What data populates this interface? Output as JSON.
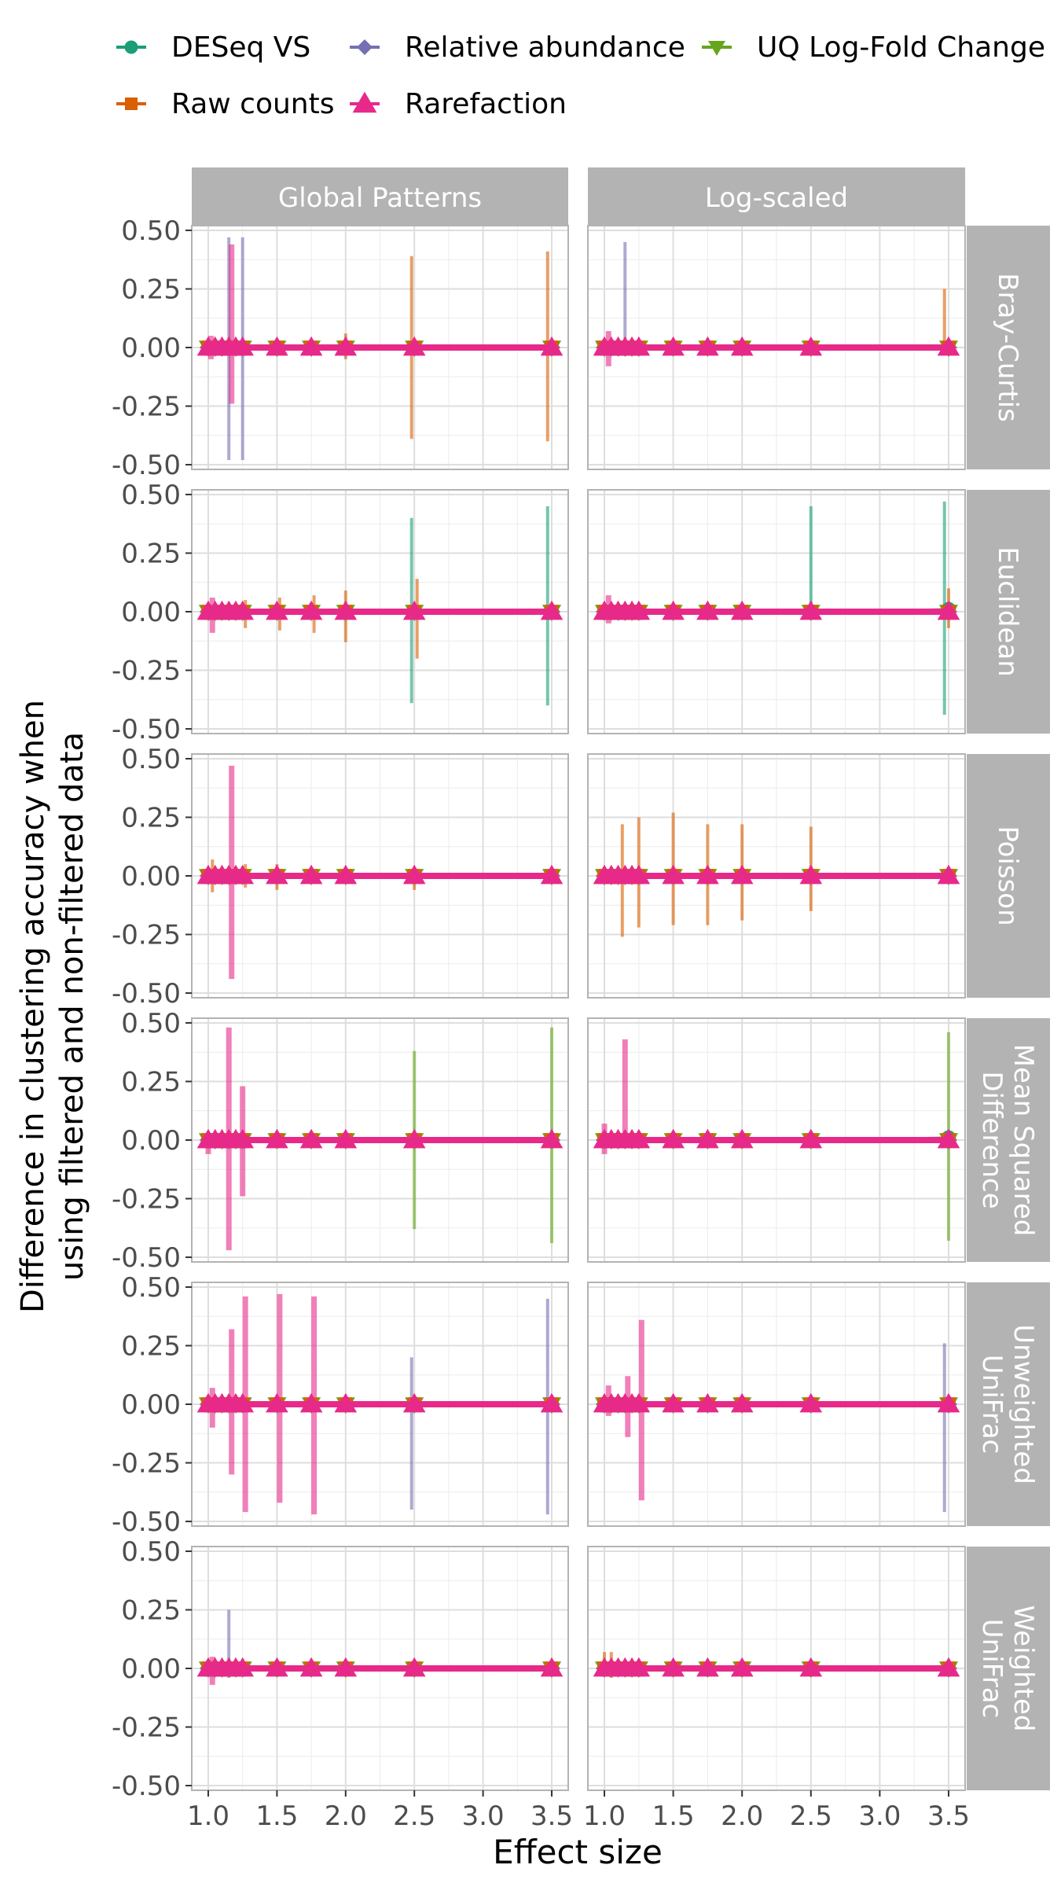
{
  "chart_data": {
    "type": "line",
    "facet": "grid",
    "xlabel": "Effect size",
    "ylabel": [
      "Difference in clustering accuracy when",
      "using filtered and non-filtered data"
    ],
    "x_ticks": [
      "1.0",
      "1.5",
      "2.0",
      "2.5",
      "3.0",
      "3.5"
    ],
    "y_ticks": [
      "0.50",
      "0.25",
      "0.00",
      "-0.25",
      "-0.50"
    ],
    "xlim": [
      0.88,
      3.62
    ],
    "ylim": [
      -0.52,
      0.52
    ],
    "x": [
      1.0,
      1.05,
      1.1,
      1.15,
      1.2,
      1.25,
      1.5,
      1.75,
      2.0,
      2.5,
      3.5
    ],
    "columns": [
      "Global Patterns",
      "Log-scaled"
    ],
    "rows": [
      [
        "Bray-Curtis"
      ],
      [
        "Euclidean"
      ],
      [
        "Poisson"
      ],
      [
        "Mean Squared",
        "Difference"
      ],
      [
        "Unweighted",
        "UniFrac"
      ],
      [
        "Weighted",
        "UniFrac"
      ]
    ],
    "legend": {
      "position": "top",
      "entries": [
        {
          "name": "DESeq VS",
          "color": "#1b9e77",
          "marker": "circle"
        },
        {
          "name": "Relative abundance",
          "color": "#7570b3",
          "marker": "diamond"
        },
        {
          "name": "UQ Log-Fold Change",
          "color": "#66a61e",
          "marker": "triangle-down"
        },
        {
          "name": "Raw counts",
          "color": "#d95f02",
          "marker": "square"
        },
        {
          "name": "Rarefaction",
          "color": "#e7298a",
          "marker": "triangle-up"
        }
      ]
    },
    "series": [
      {
        "name": "DESeq VS",
        "panels": [
          {
            "row": 0,
            "col": 0,
            "points": [
              1.0,
              1.05,
              1.1,
              1.15,
              1.2,
              1.25,
              1.5,
              1.75,
              2.0,
              2.5,
              3.5
            ],
            "values": 0
          },
          {
            "row": 0,
            "col": 1,
            "points": [
              1.0,
              1.05,
              1.1,
              1.15,
              1.2,
              1.25,
              1.5,
              1.75,
              2.0,
              2.5,
              3.5
            ],
            "values": 0
          },
          {
            "row": 1,
            "col": 0,
            "points": [
              1.0,
              1.05,
              1.1,
              1.15,
              1.2,
              1.25,
              1.5,
              1.75,
              2.0,
              2.5,
              3.5
            ],
            "values": 0
          },
          {
            "row": 1,
            "col": 1,
            "points": [
              1.0,
              1.05,
              1.1,
              1.15,
              1.2,
              1.25,
              1.5,
              1.75,
              2.0,
              2.5,
              3.5
            ],
            "values": [
              0,
              0,
              0,
              0,
              0,
              0,
              0,
              0,
              0,
              0,
              0.01
            ]
          },
          {
            "row": 2,
            "col": 0,
            "points": [
              1.0,
              1.05,
              1.1,
              1.15,
              1.2,
              1.25,
              1.5,
              1.75,
              2.0,
              2.5,
              3.5
            ],
            "values": 0
          },
          {
            "row": 2,
            "col": 1,
            "points": [
              1.0,
              1.05,
              1.1,
              1.15,
              1.2,
              1.25,
              1.5,
              1.75,
              2.0,
              2.5,
              3.5
            ],
            "values": 0
          },
          {
            "row": 3,
            "col": 0,
            "points": [
              1.0,
              1.05,
              1.1,
              1.15,
              1.2,
              1.25,
              1.5,
              1.75,
              2.0,
              2.5,
              3.5
            ],
            "values": 0
          },
          {
            "row": 3,
            "col": 1,
            "points": [
              1.0,
              1.05,
              1.1,
              1.15,
              1.2,
              1.25,
              1.5,
              1.75,
              2.0,
              2.5,
              3.5
            ],
            "values": [
              0,
              0,
              0,
              0,
              0,
              0,
              0,
              0,
              0,
              0,
              0.01
            ]
          },
          {
            "row": 4,
            "col": 0,
            "points": [
              1.0,
              1.05,
              1.1,
              1.15,
              1.2,
              1.25,
              1.5,
              1.75,
              2.0,
              2.5,
              3.5
            ],
            "values": 0
          },
          {
            "row": 4,
            "col": 1,
            "points": [
              1.0,
              1.05,
              1.1,
              1.15,
              1.2,
              1.25,
              1.5,
              1.75,
              2.0,
              2.5,
              3.5
            ],
            "values": 0
          },
          {
            "row": 5,
            "col": 0,
            "points": [
              1.0,
              1.05,
              1.1,
              1.15,
              1.2,
              1.25,
              1.5,
              1.75,
              2.0,
              2.5,
              3.5
            ],
            "values": 0
          },
          {
            "row": 5,
            "col": 1,
            "points": [
              1.0,
              1.05,
              1.1,
              1.15,
              1.2,
              1.25,
              1.5,
              1.75,
              2.0,
              2.5,
              3.5
            ],
            "values": 0
          }
        ]
      },
      {
        "name": "Relative abundance",
        "panels": "all",
        "values": 0
      },
      {
        "name": "UQ Log-Fold Change",
        "panels": "all",
        "values": 0
      },
      {
        "name": "Raw counts",
        "panels": "all",
        "values": 0
      },
      {
        "name": "Rarefaction",
        "panels": "all",
        "values": 0
      }
    ],
    "error_bars": [
      {
        "row": 0,
        "col": 0,
        "series": "Relative abundance",
        "x": 1.15,
        "lo": -0.48,
        "hi": 0.47
      },
      {
        "row": 0,
        "col": 0,
        "series": "Relative abundance",
        "x": 1.25,
        "lo": -0.48,
        "hi": 0.47
      },
      {
        "row": 0,
        "col": 0,
        "series": "Rarefaction",
        "x": 1.17,
        "lo": -0.24,
        "hi": 0.44
      },
      {
        "row": 0,
        "col": 0,
        "series": "Rarefaction",
        "x": 1.02,
        "lo": -0.05,
        "hi": 0.05
      },
      {
        "row": 0,
        "col": 0,
        "series": "Raw counts",
        "x": 2.0,
        "lo": -0.05,
        "hi": 0.06
      },
      {
        "row": 0,
        "col": 0,
        "series": "Raw counts",
        "x": 2.48,
        "lo": -0.39,
        "hi": 0.39
      },
      {
        "row": 0,
        "col": 0,
        "series": "Raw counts",
        "x": 3.47,
        "lo": -0.4,
        "hi": 0.41
      },
      {
        "row": 0,
        "col": 1,
        "series": "Relative abundance",
        "x": 1.15,
        "lo": -0.02,
        "hi": 0.45
      },
      {
        "row": 0,
        "col": 1,
        "series": "Rarefaction",
        "x": 1.03,
        "lo": -0.08,
        "hi": 0.07
      },
      {
        "row": 0,
        "col": 1,
        "series": "Raw counts",
        "x": 3.47,
        "lo": -0.03,
        "hi": 0.25
      },
      {
        "row": 1,
        "col": 0,
        "series": "Rarefaction",
        "x": 1.03,
        "lo": -0.09,
        "hi": 0.06
      },
      {
        "row": 1,
        "col": 0,
        "series": "Raw counts",
        "x": 1.27,
        "lo": -0.07,
        "hi": 0.05
      },
      {
        "row": 1,
        "col": 0,
        "series": "Raw counts",
        "x": 1.52,
        "lo": -0.08,
        "hi": 0.06
      },
      {
        "row": 1,
        "col": 0,
        "series": "Raw counts",
        "x": 1.77,
        "lo": -0.09,
        "hi": 0.07
      },
      {
        "row": 1,
        "col": 0,
        "series": "Raw counts",
        "x": 2.0,
        "lo": -0.13,
        "hi": 0.09
      },
      {
        "row": 1,
        "col": 0,
        "series": "DESeq VS",
        "x": 2.48,
        "lo": -0.39,
        "hi": 0.4
      },
      {
        "row": 1,
        "col": 0,
        "series": "Raw counts",
        "x": 2.52,
        "lo": -0.2,
        "hi": 0.14
      },
      {
        "row": 1,
        "col": 0,
        "series": "DESeq VS",
        "x": 3.47,
        "lo": -0.4,
        "hi": 0.45
      },
      {
        "row": 1,
        "col": 1,
        "series": "Rarefaction",
        "x": 1.03,
        "lo": -0.05,
        "hi": 0.07
      },
      {
        "row": 1,
        "col": 1,
        "series": "DESeq VS",
        "x": 2.5,
        "lo": 0.0,
        "hi": 0.45
      },
      {
        "row": 1,
        "col": 1,
        "series": "DESeq VS",
        "x": 3.47,
        "lo": -0.44,
        "hi": 0.47
      },
      {
        "row": 1,
        "col": 1,
        "series": "Raw counts",
        "x": 3.5,
        "lo": -0.07,
        "hi": 0.1
      },
      {
        "row": 2,
        "col": 0,
        "series": "Raw counts",
        "x": 1.03,
        "lo": -0.07,
        "hi": 0.07
      },
      {
        "row": 2,
        "col": 0,
        "series": "Rarefaction",
        "x": 1.17,
        "lo": -0.44,
        "hi": 0.47
      },
      {
        "row": 2,
        "col": 0,
        "series": "Raw counts",
        "x": 1.27,
        "lo": -0.05,
        "hi": 0.05
      },
      {
        "row": 2,
        "col": 0,
        "series": "Raw counts",
        "x": 1.5,
        "lo": -0.06,
        "hi": 0.05
      },
      {
        "row": 2,
        "col": 0,
        "series": "Raw counts",
        "x": 2.5,
        "lo": -0.06,
        "hi": 0.03
      },
      {
        "row": 2,
        "col": 1,
        "series": "Raw counts",
        "x": 1.13,
        "lo": -0.26,
        "hi": 0.22
      },
      {
        "row": 2,
        "col": 1,
        "series": "Raw counts",
        "x": 1.25,
        "lo": -0.22,
        "hi": 0.25
      },
      {
        "row": 2,
        "col": 1,
        "series": "Raw counts",
        "x": 1.5,
        "lo": -0.21,
        "hi": 0.27
      },
      {
        "row": 2,
        "col": 1,
        "series": "Raw counts",
        "x": 1.75,
        "lo": -0.21,
        "hi": 0.22
      },
      {
        "row": 2,
        "col": 1,
        "series": "Raw counts",
        "x": 2.0,
        "lo": -0.19,
        "hi": 0.22
      },
      {
        "row": 2,
        "col": 1,
        "series": "Raw counts",
        "x": 2.5,
        "lo": -0.15,
        "hi": 0.21
      },
      {
        "row": 3,
        "col": 0,
        "series": "Rarefaction",
        "x": 1.0,
        "lo": -0.06,
        "hi": 0.0
      },
      {
        "row": 3,
        "col": 0,
        "series": "Rarefaction",
        "x": 1.15,
        "lo": -0.47,
        "hi": 0.48
      },
      {
        "row": 3,
        "col": 0,
        "series": "Rarefaction",
        "x": 1.25,
        "lo": -0.24,
        "hi": 0.23
      },
      {
        "row": 3,
        "col": 0,
        "series": "UQ Log-Fold Change",
        "x": 2.5,
        "lo": -0.38,
        "hi": 0.38
      },
      {
        "row": 3,
        "col": 0,
        "series": "UQ Log-Fold Change",
        "x": 3.5,
        "lo": -0.44,
        "hi": 0.48
      },
      {
        "row": 3,
        "col": 1,
        "series": "Rarefaction",
        "x": 1.0,
        "lo": -0.06,
        "hi": 0.07
      },
      {
        "row": 3,
        "col": 1,
        "series": "Rarefaction",
        "x": 1.15,
        "lo": -0.03,
        "hi": 0.43
      },
      {
        "row": 3,
        "col": 1,
        "series": "UQ Log-Fold Change",
        "x": 3.5,
        "lo": -0.43,
        "hi": 0.46
      },
      {
        "row": 4,
        "col": 0,
        "series": "Rarefaction",
        "x": 1.03,
        "lo": -0.1,
        "hi": 0.07
      },
      {
        "row": 4,
        "col": 0,
        "series": "Rarefaction",
        "x": 1.17,
        "lo": -0.3,
        "hi": 0.32
      },
      {
        "row": 4,
        "col": 0,
        "series": "Rarefaction",
        "x": 1.27,
        "lo": -0.46,
        "hi": 0.46
      },
      {
        "row": 4,
        "col": 0,
        "series": "Rarefaction",
        "x": 1.52,
        "lo": -0.42,
        "hi": 0.47
      },
      {
        "row": 4,
        "col": 0,
        "series": "Rarefaction",
        "x": 1.77,
        "lo": -0.47,
        "hi": 0.46
      },
      {
        "row": 4,
        "col": 0,
        "series": "Relative abundance",
        "x": 2.48,
        "lo": -0.45,
        "hi": 0.2
      },
      {
        "row": 4,
        "col": 0,
        "series": "Relative abundance",
        "x": 3.47,
        "lo": -0.47,
        "hi": 0.45
      },
      {
        "row": 4,
        "col": 1,
        "series": "Rarefaction",
        "x": 1.03,
        "lo": -0.05,
        "hi": 0.08
      },
      {
        "row": 4,
        "col": 1,
        "series": "Rarefaction",
        "x": 1.17,
        "lo": -0.14,
        "hi": 0.12
      },
      {
        "row": 4,
        "col": 1,
        "series": "Rarefaction",
        "x": 1.27,
        "lo": -0.41,
        "hi": 0.36
      },
      {
        "row": 4,
        "col": 1,
        "series": "Relative abundance",
        "x": 3.47,
        "lo": -0.46,
        "hi": 0.26
      },
      {
        "row": 5,
        "col": 0,
        "series": "Rarefaction",
        "x": 1.03,
        "lo": -0.07,
        "hi": 0.05
      },
      {
        "row": 5,
        "col": 0,
        "series": "Relative abundance",
        "x": 1.15,
        "lo": -0.04,
        "hi": 0.25
      },
      {
        "row": 5,
        "col": 1,
        "series": "Raw counts",
        "x": 1.0,
        "lo": -0.02,
        "hi": 0.07
      },
      {
        "row": 5,
        "col": 1,
        "series": "Raw counts",
        "x": 1.05,
        "lo": -0.04,
        "hi": 0.07
      }
    ]
  }
}
